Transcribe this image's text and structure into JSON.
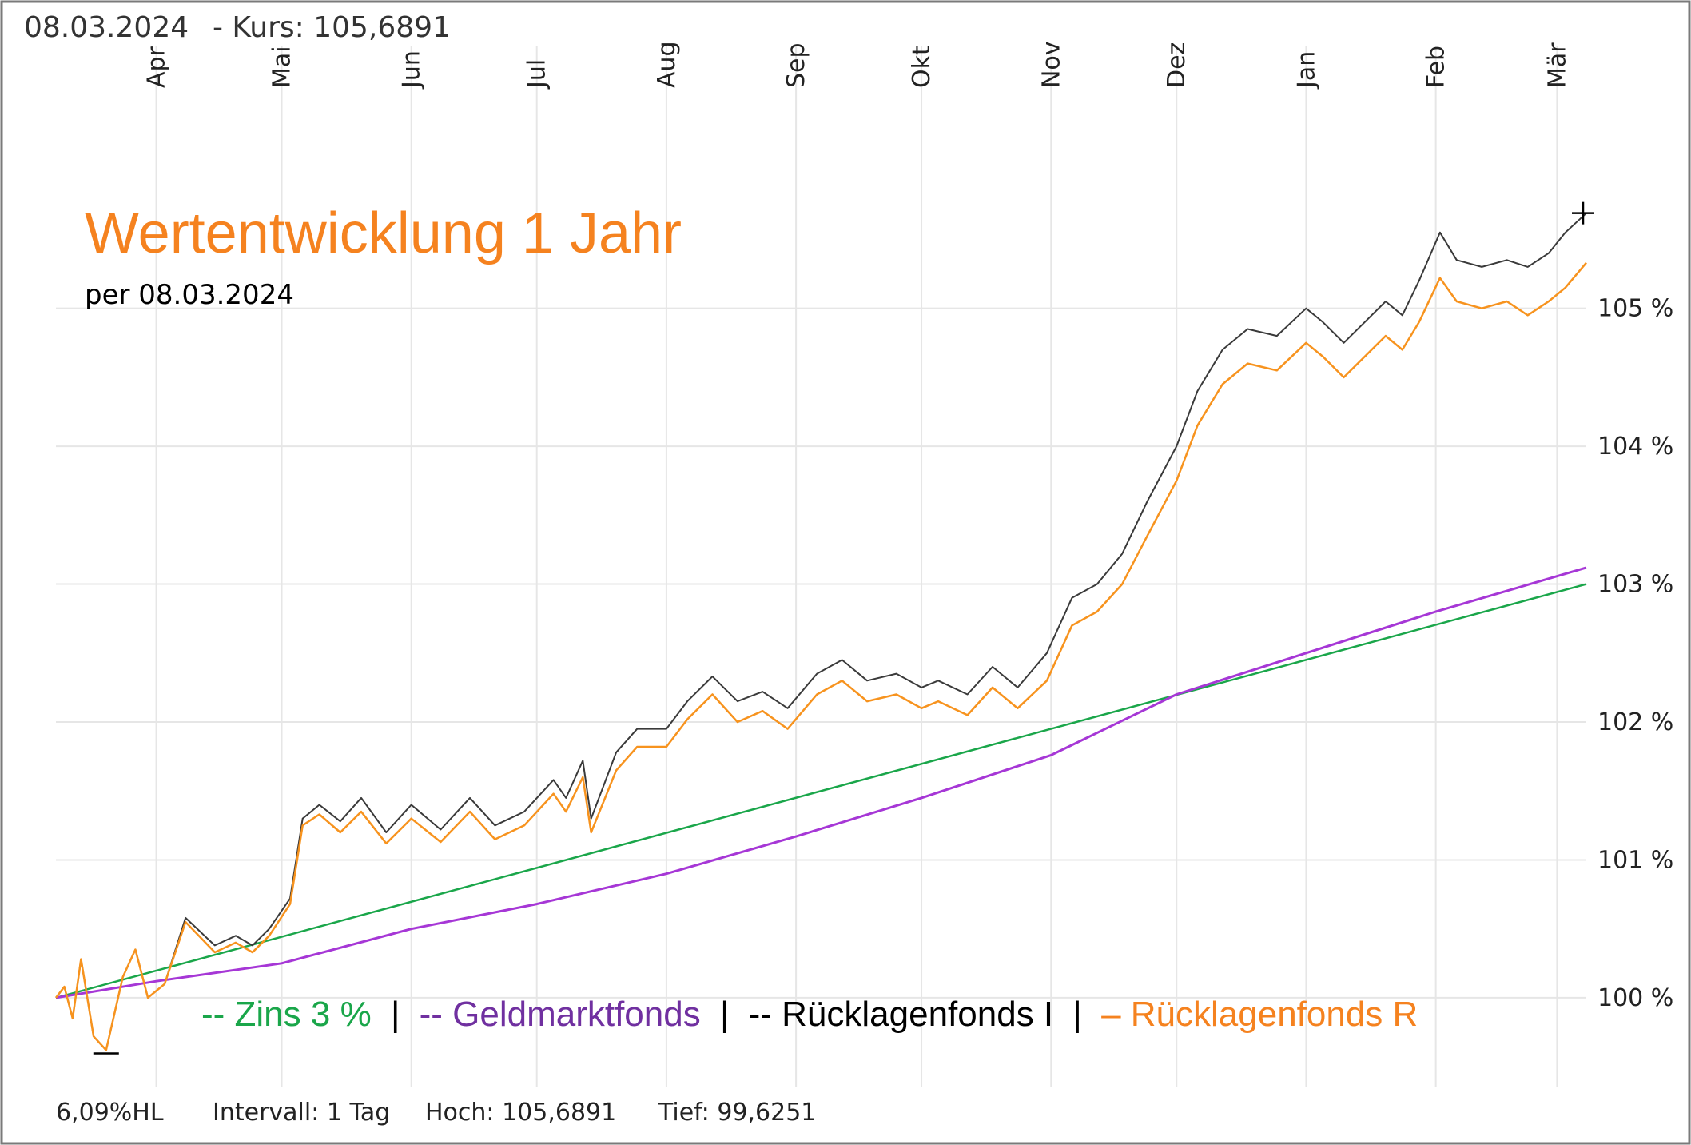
{
  "header": {
    "date": "08.03.2024",
    "kurs": "- Kurs: 105,6891"
  },
  "chart_data": {
    "type": "line",
    "title": "Wertentwicklung 1 Jahr",
    "subtitle": "per 08.03.2024",
    "xlabel": "",
    "ylabel": "",
    "x_ticks": [
      "Apr",
      "Mai",
      "Jun",
      "Jul",
      "Aug",
      "Sep",
      "Okt",
      "Nov",
      "Dez",
      "Jan",
      "Feb",
      "Mär"
    ],
    "y_ticks": [
      "100 %",
      "101 %",
      "102 %",
      "103 %",
      "104 %",
      "105 %"
    ],
    "y_tick_values": [
      100,
      101,
      102,
      103,
      104,
      105
    ],
    "ylim": [
      99.35,
      106.9
    ],
    "x_range": [
      "2023-03-08",
      "2024-03-08"
    ],
    "grid": true,
    "legend_position": "bottom",
    "series": [
      {
        "name": "Zins 3 %",
        "legend_label": "-- Zins 3 %",
        "color": "#1aa64a",
        "points": [
          [
            "2023-03-08",
            100.0
          ],
          [
            "2024-03-08",
            103.0
          ]
        ]
      },
      {
        "name": "Geldmarktfonds",
        "legend_label": "-- Geldmarktfonds",
        "color": "#a637d6",
        "points": [
          [
            "2023-03-08",
            100.0
          ],
          [
            "2023-04-01",
            100.12
          ],
          [
            "2023-05-01",
            100.25
          ],
          [
            "2023-06-01",
            100.5
          ],
          [
            "2023-07-01",
            100.68
          ],
          [
            "2023-08-01",
            100.9
          ],
          [
            "2023-09-01",
            101.17
          ],
          [
            "2023-10-01",
            101.45
          ],
          [
            "2023-11-01",
            101.76
          ],
          [
            "2023-12-01",
            102.2
          ],
          [
            "2024-01-01",
            102.5
          ],
          [
            "2024-02-01",
            102.8
          ],
          [
            "2024-03-08",
            103.12
          ]
        ]
      },
      {
        "name": "Rücklagenfonds I",
        "legend_label": "-- Rücklagenfonds I",
        "color": "#3a3a3a",
        "points": [
          [
            "2023-03-08",
            100.0
          ],
          [
            "2023-03-10",
            100.08
          ],
          [
            "2023-03-12",
            99.85
          ],
          [
            "2023-03-14",
            100.28
          ],
          [
            "2023-03-17",
            99.72
          ],
          [
            "2023-03-20",
            99.62
          ],
          [
            "2023-03-24",
            100.15
          ],
          [
            "2023-03-27",
            100.35
          ],
          [
            "2023-03-30",
            100.0
          ],
          [
            "2023-04-03",
            100.1
          ],
          [
            "2023-04-08",
            100.58
          ],
          [
            "2023-04-15",
            100.38
          ],
          [
            "2023-04-20",
            100.45
          ],
          [
            "2023-04-24",
            100.38
          ],
          [
            "2023-04-28",
            100.5
          ],
          [
            "2023-05-03",
            100.72
          ],
          [
            "2023-05-06",
            101.3
          ],
          [
            "2023-05-10",
            101.4
          ],
          [
            "2023-05-15",
            101.28
          ],
          [
            "2023-05-20",
            101.45
          ],
          [
            "2023-05-26",
            101.2
          ],
          [
            "2023-06-01",
            101.4
          ],
          [
            "2023-06-08",
            101.22
          ],
          [
            "2023-06-15",
            101.45
          ],
          [
            "2023-06-21",
            101.25
          ],
          [
            "2023-06-28",
            101.35
          ],
          [
            "2023-07-05",
            101.58
          ],
          [
            "2023-07-08",
            101.45
          ],
          [
            "2023-07-12",
            101.72
          ],
          [
            "2023-07-14",
            101.3
          ],
          [
            "2023-07-20",
            101.78
          ],
          [
            "2023-07-25",
            101.95
          ],
          [
            "2023-08-01",
            101.95
          ],
          [
            "2023-08-06",
            102.15
          ],
          [
            "2023-08-12",
            102.33
          ],
          [
            "2023-08-18",
            102.15
          ],
          [
            "2023-08-24",
            102.22
          ],
          [
            "2023-08-30",
            102.1
          ],
          [
            "2023-09-06",
            102.35
          ],
          [
            "2023-09-12",
            102.45
          ],
          [
            "2023-09-18",
            102.3
          ],
          [
            "2023-09-25",
            102.35
          ],
          [
            "2023-10-01",
            102.25
          ],
          [
            "2023-10-05",
            102.3
          ],
          [
            "2023-10-12",
            102.2
          ],
          [
            "2023-10-18",
            102.4
          ],
          [
            "2023-10-24",
            102.25
          ],
          [
            "2023-10-31",
            102.5
          ],
          [
            "2023-11-06",
            102.9
          ],
          [
            "2023-11-12",
            103.0
          ],
          [
            "2023-11-18",
            103.22
          ],
          [
            "2023-11-24",
            103.6
          ],
          [
            "2023-12-01",
            104.0
          ],
          [
            "2023-12-06",
            104.4
          ],
          [
            "2023-12-12",
            104.7
          ],
          [
            "2023-12-18",
            104.85
          ],
          [
            "2023-12-25",
            104.8
          ],
          [
            "2024-01-01",
            105.0
          ],
          [
            "2024-01-05",
            104.9
          ],
          [
            "2024-01-10",
            104.75
          ],
          [
            "2024-01-15",
            104.9
          ],
          [
            "2024-01-20",
            105.05
          ],
          [
            "2024-01-24",
            104.95
          ],
          [
            "2024-01-28",
            105.2
          ],
          [
            "2024-02-02",
            105.55
          ],
          [
            "2024-02-06",
            105.35
          ],
          [
            "2024-02-12",
            105.3
          ],
          [
            "2024-02-18",
            105.35
          ],
          [
            "2024-02-23",
            105.3
          ],
          [
            "2024-02-28",
            105.4
          ],
          [
            "2024-03-03",
            105.55
          ],
          [
            "2024-03-08",
            105.69
          ]
        ]
      },
      {
        "name": "Rücklagenfonds R",
        "legend_label": "– Rücklagenfonds R",
        "color": "#f7931e",
        "points": [
          [
            "2023-03-08",
            100.0
          ],
          [
            "2023-03-10",
            100.08
          ],
          [
            "2023-03-12",
            99.85
          ],
          [
            "2023-03-14",
            100.28
          ],
          [
            "2023-03-17",
            99.72
          ],
          [
            "2023-03-20",
            99.62
          ],
          [
            "2023-03-24",
            100.15
          ],
          [
            "2023-03-27",
            100.35
          ],
          [
            "2023-03-30",
            100.0
          ],
          [
            "2023-04-03",
            100.1
          ],
          [
            "2023-04-08",
            100.55
          ],
          [
            "2023-04-15",
            100.33
          ],
          [
            "2023-04-20",
            100.4
          ],
          [
            "2023-04-24",
            100.33
          ],
          [
            "2023-04-28",
            100.45
          ],
          [
            "2023-05-03",
            100.68
          ],
          [
            "2023-05-06",
            101.25
          ],
          [
            "2023-05-10",
            101.33
          ],
          [
            "2023-05-15",
            101.2
          ],
          [
            "2023-05-20",
            101.35
          ],
          [
            "2023-05-26",
            101.12
          ],
          [
            "2023-06-01",
            101.3
          ],
          [
            "2023-06-08",
            101.13
          ],
          [
            "2023-06-15",
            101.35
          ],
          [
            "2023-06-21",
            101.15
          ],
          [
            "2023-06-28",
            101.25
          ],
          [
            "2023-07-05",
            101.48
          ],
          [
            "2023-07-08",
            101.35
          ],
          [
            "2023-07-12",
            101.6
          ],
          [
            "2023-07-14",
            101.2
          ],
          [
            "2023-07-20",
            101.65
          ],
          [
            "2023-07-25",
            101.82
          ],
          [
            "2023-08-01",
            101.82
          ],
          [
            "2023-08-06",
            102.02
          ],
          [
            "2023-08-12",
            102.2
          ],
          [
            "2023-08-18",
            102.0
          ],
          [
            "2023-08-24",
            102.08
          ],
          [
            "2023-08-30",
            101.95
          ],
          [
            "2023-09-06",
            102.2
          ],
          [
            "2023-09-12",
            102.3
          ],
          [
            "2023-09-18",
            102.15
          ],
          [
            "2023-09-25",
            102.2
          ],
          [
            "2023-10-01",
            102.1
          ],
          [
            "2023-10-05",
            102.15
          ],
          [
            "2023-10-12",
            102.05
          ],
          [
            "2023-10-18",
            102.25
          ],
          [
            "2023-10-24",
            102.1
          ],
          [
            "2023-10-31",
            102.3
          ],
          [
            "2023-11-06",
            102.7
          ],
          [
            "2023-11-12",
            102.8
          ],
          [
            "2023-11-18",
            103.0
          ],
          [
            "2023-11-24",
            103.35
          ],
          [
            "2023-12-01",
            103.75
          ],
          [
            "2023-12-06",
            104.15
          ],
          [
            "2023-12-12",
            104.45
          ],
          [
            "2023-12-18",
            104.6
          ],
          [
            "2023-12-25",
            104.55
          ],
          [
            "2024-01-01",
            104.75
          ],
          [
            "2024-01-05",
            104.65
          ],
          [
            "2024-01-10",
            104.5
          ],
          [
            "2024-01-15",
            104.65
          ],
          [
            "2024-01-20",
            104.8
          ],
          [
            "2024-01-24",
            104.7
          ],
          [
            "2024-01-28",
            104.9
          ],
          [
            "2024-02-02",
            105.22
          ],
          [
            "2024-02-06",
            105.05
          ],
          [
            "2024-02-12",
            105.0
          ],
          [
            "2024-02-18",
            105.05
          ],
          [
            "2024-02-23",
            104.95
          ],
          [
            "2024-02-28",
            105.05
          ],
          [
            "2024-03-03",
            105.15
          ],
          [
            "2024-03-08",
            105.33
          ]
        ]
      }
    ],
    "legend_separator": "|",
    "annotations": {
      "high_marker": "105,6891",
      "low_marker": "99,6251"
    }
  },
  "footer": {
    "range": "6,09%HL",
    "interval": "Intervall: 1 Tag",
    "high": "Hoch: 105,6891",
    "low": "Tief: 99,6251"
  },
  "colors": {
    "title": "#f5821f",
    "grid": "#e6e6e6",
    "frame": "#7a7a7a"
  }
}
